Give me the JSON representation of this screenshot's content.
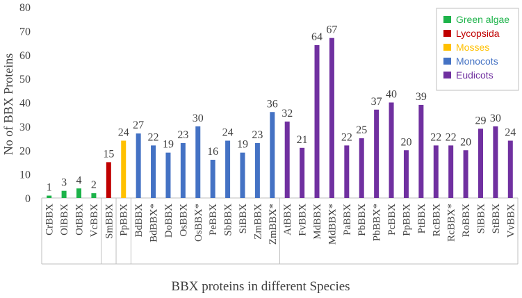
{
  "chart_data": {
    "type": "bar",
    "title": "",
    "xlabel": "BBX proteins in different Species",
    "ylabel": "No of BBX Proteins",
    "ylim": [
      0,
      80
    ],
    "yticks": [
      0,
      10,
      20,
      30,
      40,
      50,
      60,
      70,
      80
    ],
    "grid": false,
    "legend_position": "top-right",
    "categories": [
      "CrBBX",
      "OlBBX",
      "OtBBX",
      "VcBBX",
      "SmBBX",
      "PpBBX",
      "BdBBX",
      "BdBBX*",
      "DoBBX",
      "OsBBX",
      "OsBBX*",
      "PeBBX",
      "SbBBX",
      "SiBBX",
      "ZmBBX",
      "ZmBBX*",
      "AtBBX",
      "FvBBX",
      "MdBBX",
      "MdBBX*",
      "PaBBX",
      "PbBBX",
      "PbBBX*",
      "PcBBX",
      "PpBBX",
      "PtBBX",
      "RcBBX",
      "RcBBX*",
      "RoBBX",
      "SlBBX",
      "StBBX",
      "VvBBX"
    ],
    "values": [
      1,
      3,
      4,
      2,
      15,
      24,
      27,
      22,
      19,
      23,
      30,
      16,
      24,
      19,
      23,
      36,
      32,
      21,
      64,
      67,
      22,
      25,
      37,
      40,
      20,
      39,
      22,
      22,
      20,
      29,
      30,
      24
    ],
    "groups": [
      "Green algae",
      "Green algae",
      "Green algae",
      "Green algae",
      "Lycopsida",
      "Mosses",
      "Monocots",
      "Monocots",
      "Monocots",
      "Monocots",
      "Monocots",
      "Monocots",
      "Monocots",
      "Monocots",
      "Monocots",
      "Monocots",
      "Eudicots",
      "Eudicots",
      "Eudicots",
      "Eudicots",
      "Eudicots",
      "Eudicots",
      "Eudicots",
      "Eudicots",
      "Eudicots",
      "Eudicots",
      "Eudicots",
      "Eudicots",
      "Eudicots",
      "Eudicots",
      "Eudicots",
      "Eudicots"
    ],
    "legend": [
      {
        "name": "Green algae",
        "color": "#1db34a"
      },
      {
        "name": "Lycopsida",
        "color": "#c00000"
      },
      {
        "name": "Mosses",
        "color": "#ffc000"
      },
      {
        "name": "Monocots",
        "color": "#4472c4"
      },
      {
        "name": "Eudicots",
        "color": "#7030a0"
      }
    ]
  }
}
